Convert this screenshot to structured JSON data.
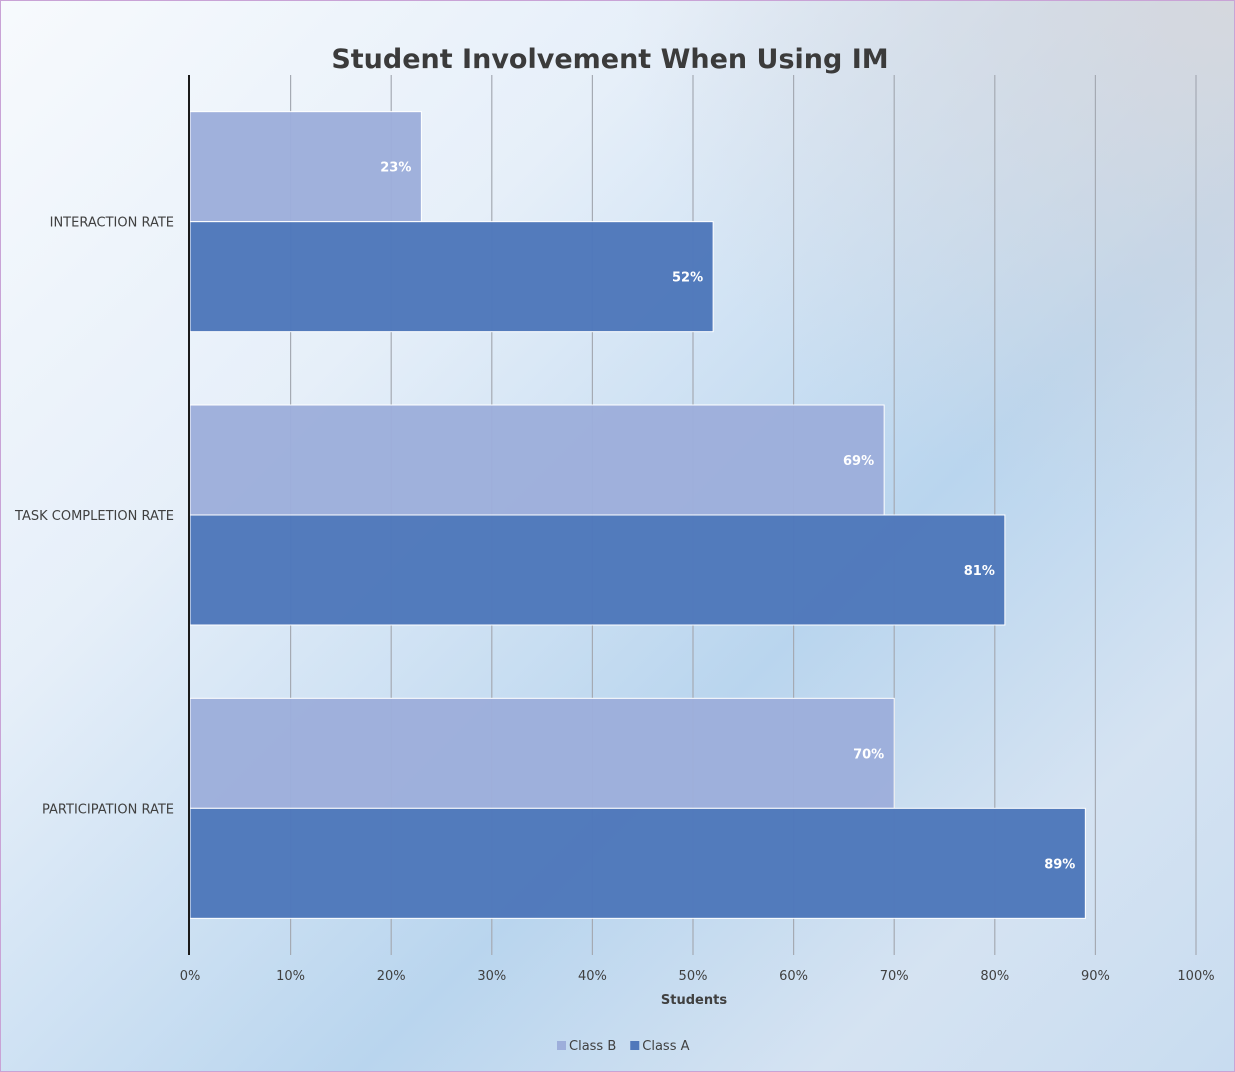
{
  "chart_data": {
    "type": "bar",
    "orientation": "horizontal",
    "title": "Student Involvement When Using IM",
    "xlabel": "Students",
    "ylabel": "",
    "xlim": [
      0,
      100
    ],
    "tick_values": [
      0,
      10,
      20,
      30,
      40,
      50,
      60,
      70,
      80,
      90,
      100
    ],
    "tick_suffix": "%",
    "grid": true,
    "legend_position": "bottom",
    "categories": [
      "INTERACTION RATE",
      "TASK COMPLETION RATE",
      "PARTICIPATION RATE"
    ],
    "series": [
      {
        "name": "Class B",
        "color": "#9daedb",
        "values": [
          23,
          69,
          70
        ]
      },
      {
        "name": "Class A",
        "color": "#5078bb",
        "values": [
          52,
          81,
          89
        ]
      }
    ]
  }
}
